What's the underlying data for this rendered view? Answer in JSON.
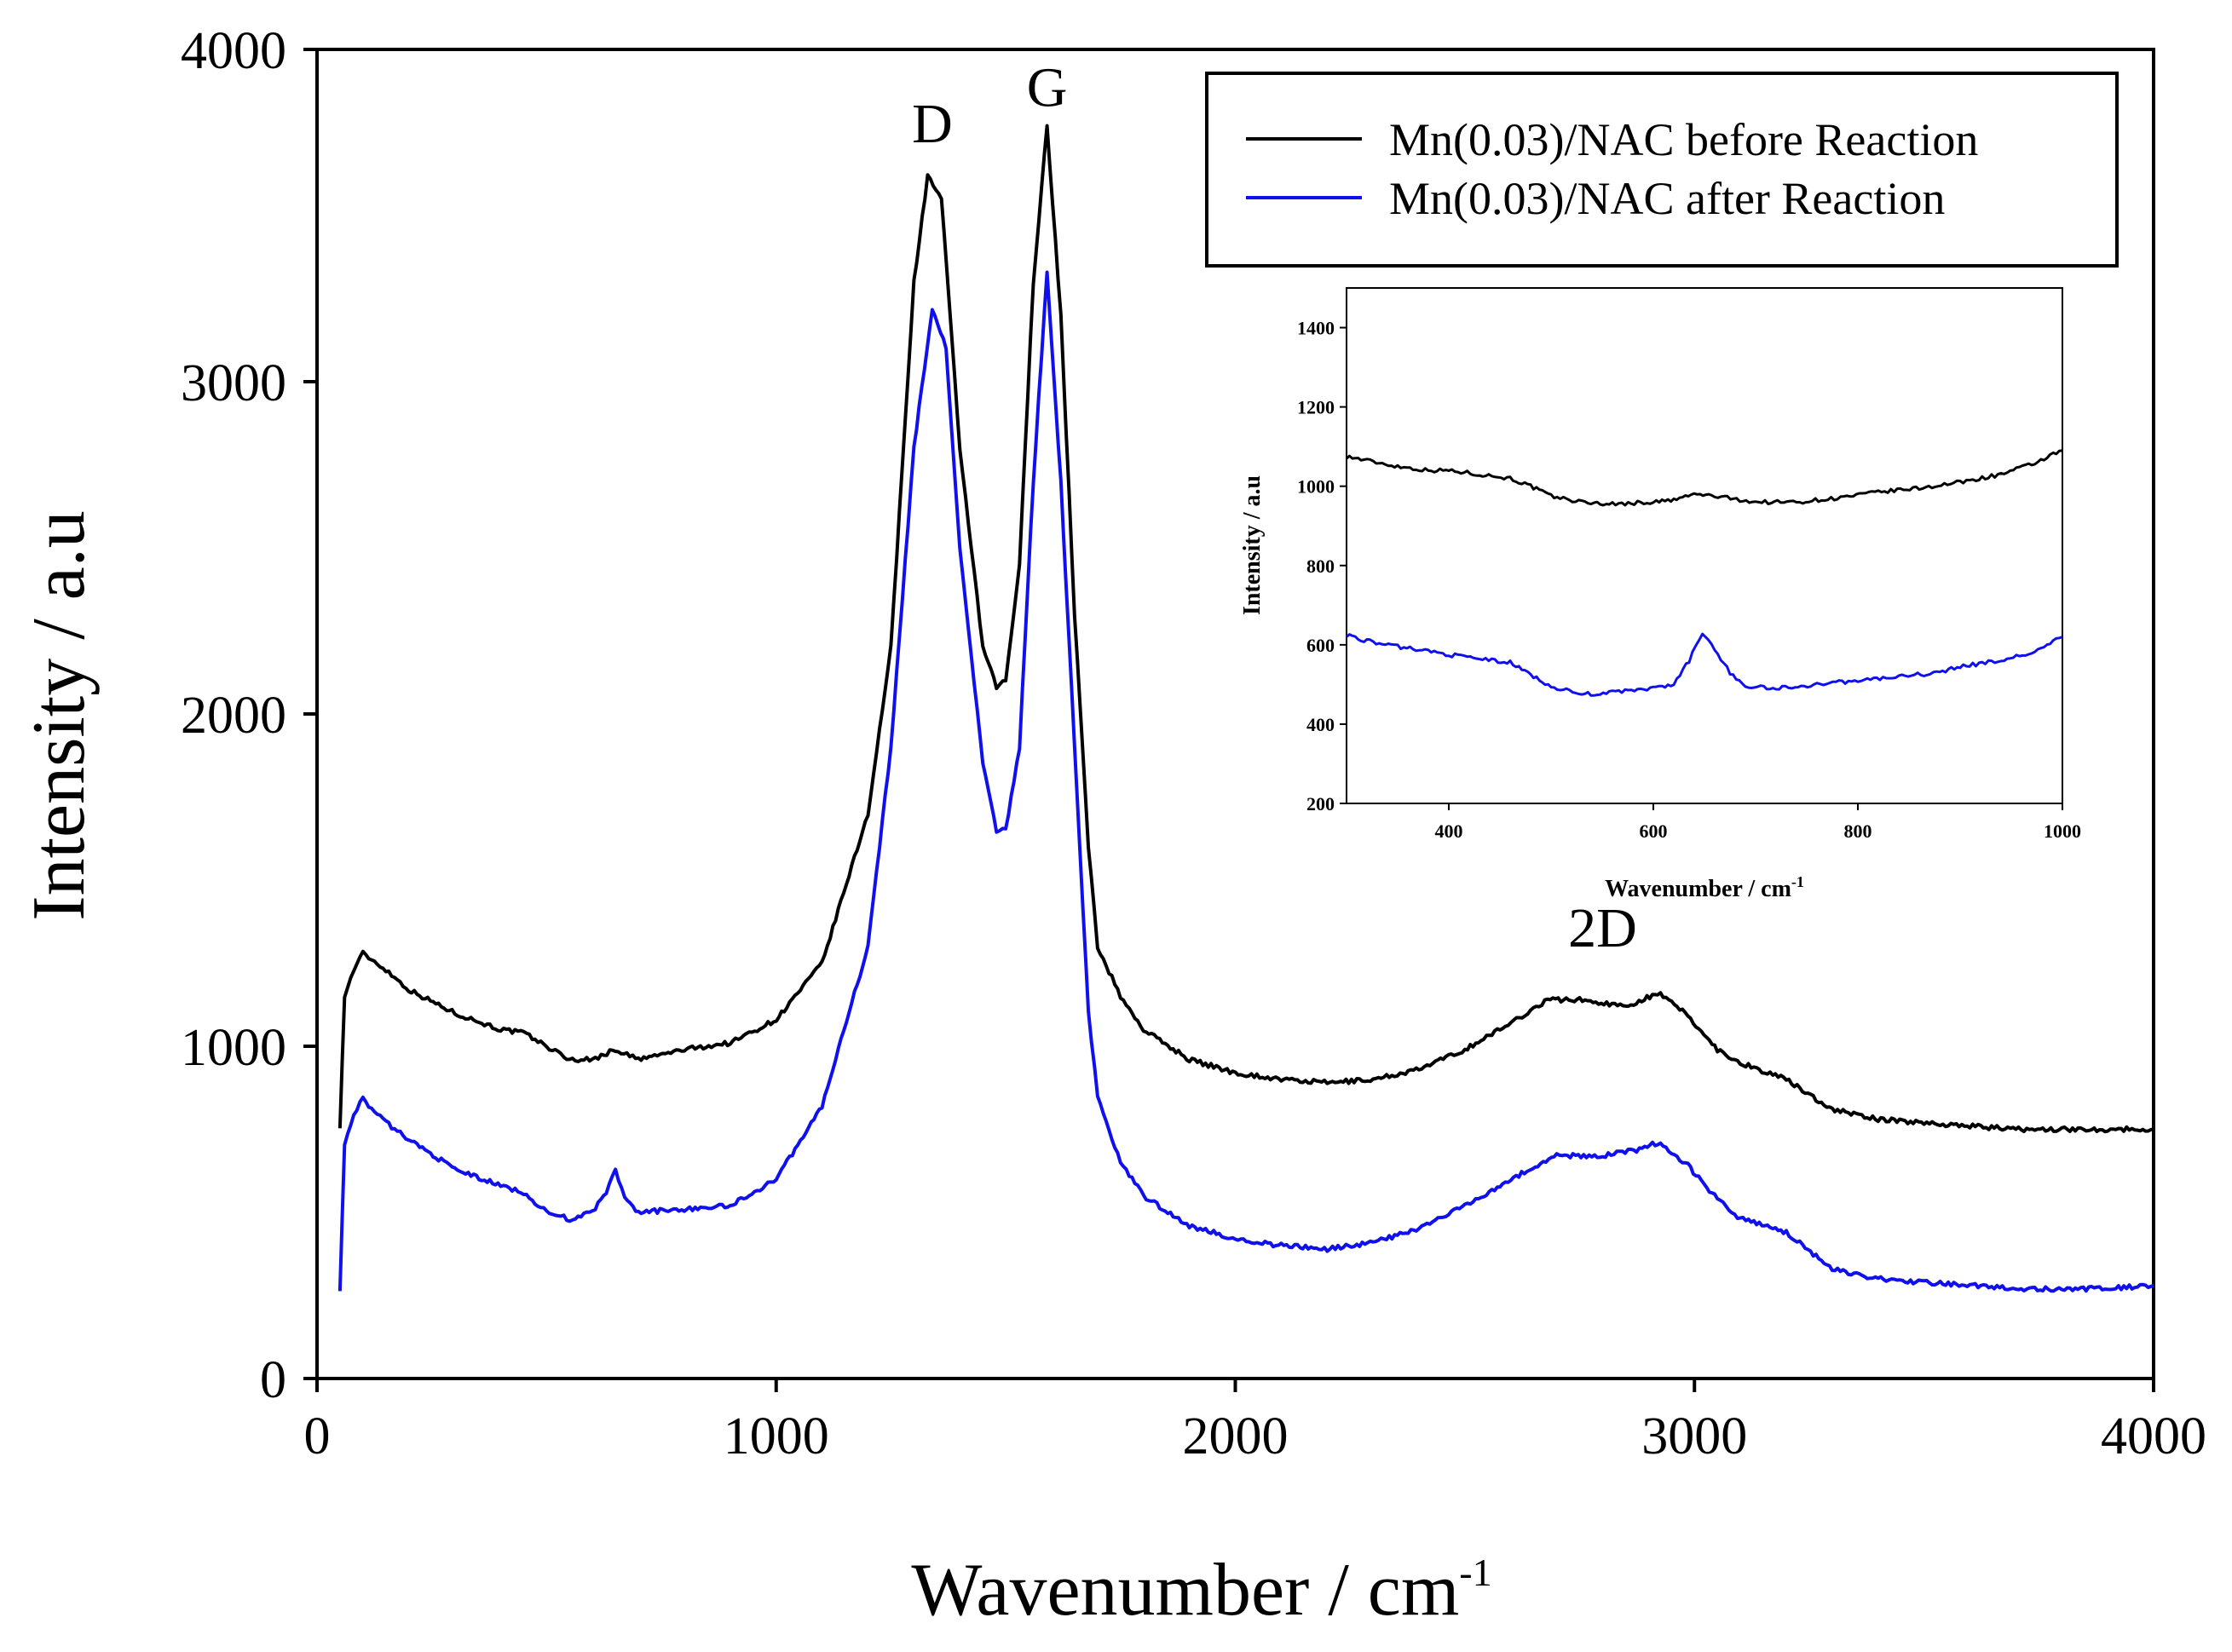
{
  "chart_data": [
    {
      "type": "line",
      "role": "main",
      "xlabel": "Wavenumber / cm",
      "xlabel_sup": "-1",
      "ylabel": "Intensity / a.u",
      "xlim": [
        0,
        4000
      ],
      "ylim": [
        0,
        4000
      ],
      "xticks": [
        0,
        1000,
        2000,
        3000,
        4000
      ],
      "yticks": [
        0,
        1000,
        2000,
        3000,
        4000
      ],
      "grid": false,
      "legend_position": "top-right",
      "annotations": [
        {
          "text": "D",
          "x": 1340,
          "y": 3720
        },
        {
          "text": "G",
          "x": 1590,
          "y": 3830
        },
        {
          "text": "2D",
          "x": 2800,
          "y": 1300
        }
      ],
      "series": [
        {
          "name": "Mn(0.03)/NAC before Reaction",
          "color": "#000000",
          "points": [
            [
              50,
              760
            ],
            [
              60,
              1150
            ],
            [
              80,
              1230
            ],
            [
              100,
              1280
            ],
            [
              150,
              1230
            ],
            [
              200,
              1170
            ],
            [
              300,
              1100
            ],
            [
              400,
              1050
            ],
            [
              450,
              1040
            ],
            [
              500,
              1000
            ],
            [
              550,
              960
            ],
            [
              600,
              960
            ],
            [
              650,
              990
            ],
            [
              700,
              960
            ],
            [
              800,
              990
            ],
            [
              900,
              1010
            ],
            [
              1000,
              1080
            ],
            [
              1100,
              1250
            ],
            [
              1200,
              1700
            ],
            [
              1250,
              2200
            ],
            [
              1300,
              3300
            ],
            [
              1330,
              3620
            ],
            [
              1360,
              3550
            ],
            [
              1400,
              2800
            ],
            [
              1450,
              2200
            ],
            [
              1480,
              2080
            ],
            [
              1500,
              2100
            ],
            [
              1530,
              2450
            ],
            [
              1560,
              3300
            ],
            [
              1590,
              3770
            ],
            [
              1620,
              3200
            ],
            [
              1650,
              2300
            ],
            [
              1680,
              1600
            ],
            [
              1700,
              1300
            ],
            [
              1750,
              1150
            ],
            [
              1800,
              1050
            ],
            [
              1900,
              960
            ],
            [
              2000,
              920
            ],
            [
              2100,
              900
            ],
            [
              2200,
              890
            ],
            [
              2300,
              900
            ],
            [
              2400,
              930
            ],
            [
              2500,
              990
            ],
            [
              2600,
              1070
            ],
            [
              2680,
              1140
            ],
            [
              2750,
              1140
            ],
            [
              2850,
              1120
            ],
            [
              2920,
              1160
            ],
            [
              2980,
              1100
            ],
            [
              3050,
              990
            ],
            [
              3100,
              950
            ],
            [
              3200,
              900
            ],
            [
              3300,
              810
            ],
            [
              3400,
              780
            ],
            [
              3500,
              770
            ],
            [
              3600,
              760
            ],
            [
              3700,
              750
            ],
            [
              3800,
              750
            ],
            [
              3900,
              750
            ],
            [
              4000,
              750
            ]
          ]
        },
        {
          "name": "Mn(0.03)/NAC after Reaction",
          "color": "#1010ee",
          "points": [
            [
              50,
              270
            ],
            [
              60,
              700
            ],
            [
              80,
              800
            ],
            [
              100,
              840
            ],
            [
              150,
              770
            ],
            [
              200,
              720
            ],
            [
              300,
              630
            ],
            [
              400,
              580
            ],
            [
              450,
              560
            ],
            [
              500,
              500
            ],
            [
              550,
              480
            ],
            [
              600,
              500
            ],
            [
              630,
              560
            ],
            [
              650,
              630
            ],
            [
              670,
              540
            ],
            [
              700,
              500
            ],
            [
              800,
              510
            ],
            [
              900,
              520
            ],
            [
              1000,
              600
            ],
            [
              1100,
              820
            ],
            [
              1200,
              1300
            ],
            [
              1250,
              1900
            ],
            [
              1300,
              2800
            ],
            [
              1340,
              3220
            ],
            [
              1370,
              3100
            ],
            [
              1400,
              2500
            ],
            [
              1450,
              1850
            ],
            [
              1480,
              1650
            ],
            [
              1500,
              1650
            ],
            [
              1530,
              1900
            ],
            [
              1560,
              2700
            ],
            [
              1590,
              3330
            ],
            [
              1620,
              2700
            ],
            [
              1650,
              1900
            ],
            [
              1680,
              1100
            ],
            [
              1700,
              850
            ],
            [
              1750,
              650
            ],
            [
              1800,
              550
            ],
            [
              1900,
              460
            ],
            [
              2000,
              420
            ],
            [
              2100,
              400
            ],
            [
              2200,
              390
            ],
            [
              2300,
              410
            ],
            [
              2400,
              450
            ],
            [
              2500,
              520
            ],
            [
              2600,
              600
            ],
            [
              2700,
              670
            ],
            [
              2800,
              670
            ],
            [
              2880,
              690
            ],
            [
              2920,
              710
            ],
            [
              2980,
              650
            ],
            [
              3050,
              540
            ],
            [
              3100,
              480
            ],
            [
              3200,
              440
            ],
            [
              3300,
              330
            ],
            [
              3400,
              300
            ],
            [
              3500,
              290
            ],
            [
              3600,
              280
            ],
            [
              3700,
              270
            ],
            [
              3800,
              270
            ],
            [
              3900,
              270
            ],
            [
              4000,
              280
            ]
          ]
        }
      ]
    },
    {
      "type": "line",
      "role": "inset",
      "xlabel": "Wavenumber / cm",
      "xlabel_sup": "-1",
      "ylabel": "Intensity / a.u",
      "xlim": [
        300,
        1000
      ],
      "ylim": [
        200,
        1500
      ],
      "xticks": [
        400,
        600,
        800,
        1000
      ],
      "yticks": [
        200,
        400,
        600,
        800,
        1000,
        1200,
        1400
      ],
      "grid": false,
      "series": [
        {
          "color": "#000000",
          "points": [
            [
              300,
              1075
            ],
            [
              320,
              1065
            ],
            [
              350,
              1050
            ],
            [
              380,
              1040
            ],
            [
              400,
              1040
            ],
            [
              430,
              1030
            ],
            [
              460,
              1020
            ],
            [
              480,
              1000
            ],
            [
              500,
              975
            ],
            [
              530,
              960
            ],
            [
              560,
              955
            ],
            [
              600,
              960
            ],
            [
              620,
              965
            ],
            [
              640,
              980
            ],
            [
              660,
              975
            ],
            [
              700,
              960
            ],
            [
              740,
              960
            ],
            [
              780,
              970
            ],
            [
              820,
              985
            ],
            [
              860,
              995
            ],
            [
              900,
              1010
            ],
            [
              940,
              1030
            ],
            [
              970,
              1055
            ],
            [
              1000,
              1090
            ]
          ]
        },
        {
          "color": "#1010ee",
          "points": [
            [
              300,
              625
            ],
            [
              320,
              610
            ],
            [
              350,
              595
            ],
            [
              380,
              585
            ],
            [
              400,
              575
            ],
            [
              430,
              565
            ],
            [
              460,
              555
            ],
            [
              480,
              525
            ],
            [
              500,
              495
            ],
            [
              530,
              475
            ],
            [
              560,
              480
            ],
            [
              600,
              490
            ],
            [
              620,
              500
            ],
            [
              635,
              560
            ],
            [
              648,
              630
            ],
            [
              660,
              590
            ],
            [
              675,
              530
            ],
            [
              690,
              495
            ],
            [
              720,
              490
            ],
            [
              760,
              500
            ],
            [
              800,
              510
            ],
            [
              840,
              520
            ],
            [
              880,
              530
            ],
            [
              900,
              545
            ],
            [
              940,
              560
            ],
            [
              970,
              580
            ],
            [
              1000,
              620
            ]
          ]
        }
      ]
    }
  ]
}
